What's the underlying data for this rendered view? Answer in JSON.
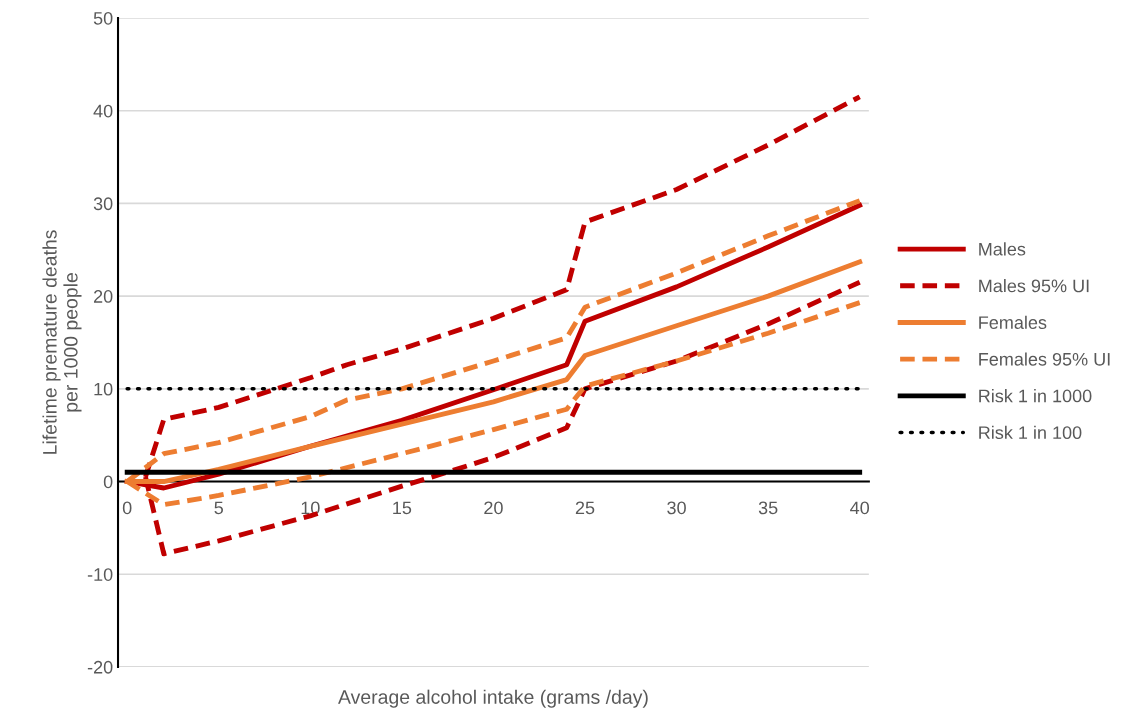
{
  "chart_data": {
    "type": "line",
    "xlabel": "Average alcohol intake (grams /day)",
    "ylabel": "Lifetime premature deaths\nper 1000 people",
    "xlim": [
      -0.5,
      40.5
    ],
    "xticks": [
      0,
      5,
      10,
      15,
      20,
      25,
      30,
      35,
      40
    ],
    "ylim": [
      -20,
      50
    ],
    "yticks": [
      -20,
      -10,
      0,
      10,
      20,
      30,
      40,
      50
    ],
    "grid": "y",
    "legend": "right",
    "marker": "none",
    "series": [
      {
        "name": "Males",
        "color": "#c00000",
        "line_style": "solid",
        "x": [
          0,
          2,
          5,
          10,
          15,
          20,
          24,
          25,
          30,
          35,
          40
        ],
        "values": [
          0,
          -0.7,
          0.8,
          3.8,
          6.6,
          9.9,
          12.6,
          17.3,
          21,
          25.3,
          29.8
        ]
      },
      {
        "name": "Males 95% UI",
        "color": "#c00000",
        "line_style": "dashed",
        "x": [
          1,
          2,
          5,
          8,
          10,
          12,
          15,
          20,
          24,
          25,
          30,
          35,
          40
        ],
        "values": [
          0.5,
          6.7,
          8,
          9.9,
          11.2,
          12.6,
          14.3,
          17.6,
          20.7,
          28,
          31.5,
          36.3,
          41.5
        ]
      },
      {
        "color": "#c00000",
        "line_style": "dashed",
        "x": [
          1,
          2,
          5,
          10,
          15,
          17,
          20,
          24,
          25,
          30,
          35,
          40
        ],
        "values": [
          0.5,
          -7.8,
          -6.4,
          -3.7,
          -0.5,
          0.7,
          2.6,
          5.8,
          10,
          13,
          17,
          21.5
        ]
      },
      {
        "name": "Females",
        "color": "#ed7d31",
        "line_style": "solid",
        "x": [
          0,
          2,
          5,
          10,
          15,
          20,
          24,
          25,
          30,
          35,
          40
        ],
        "values": [
          0,
          0,
          1.3,
          3.8,
          6.2,
          8.6,
          11,
          13.6,
          16.8,
          20,
          23.7
        ]
      },
      {
        "name": "Females 95% UI",
        "color": "#ed7d31",
        "line_style": "dashed",
        "x": [
          0,
          2,
          5,
          10,
          12,
          15,
          20,
          24,
          25,
          30,
          35,
          40
        ],
        "values": [
          0,
          3,
          4.2,
          7,
          8.8,
          10,
          13,
          15.5,
          18.8,
          22.5,
          26.5,
          30.3
        ]
      },
      {
        "color": "#ed7d31",
        "line_style": "dashed",
        "x": [
          0,
          2,
          5,
          10,
          15,
          20,
          24,
          25,
          30,
          35,
          40
        ],
        "values": [
          0,
          -2.5,
          -1.5,
          0.5,
          3,
          5.6,
          7.8,
          10.3,
          13,
          16,
          19.3
        ]
      },
      {
        "name": "Risk 1 in 1000",
        "color": "#000000",
        "line_style": "solid",
        "x": [
          0,
          40
        ],
        "values": [
          1,
          1
        ]
      },
      {
        "name": "Risk 1 in 100",
        "color": "#000000",
        "line_style": "dotted",
        "x": [
          0,
          40
        ],
        "values": [
          10,
          10
        ]
      }
    ]
  }
}
